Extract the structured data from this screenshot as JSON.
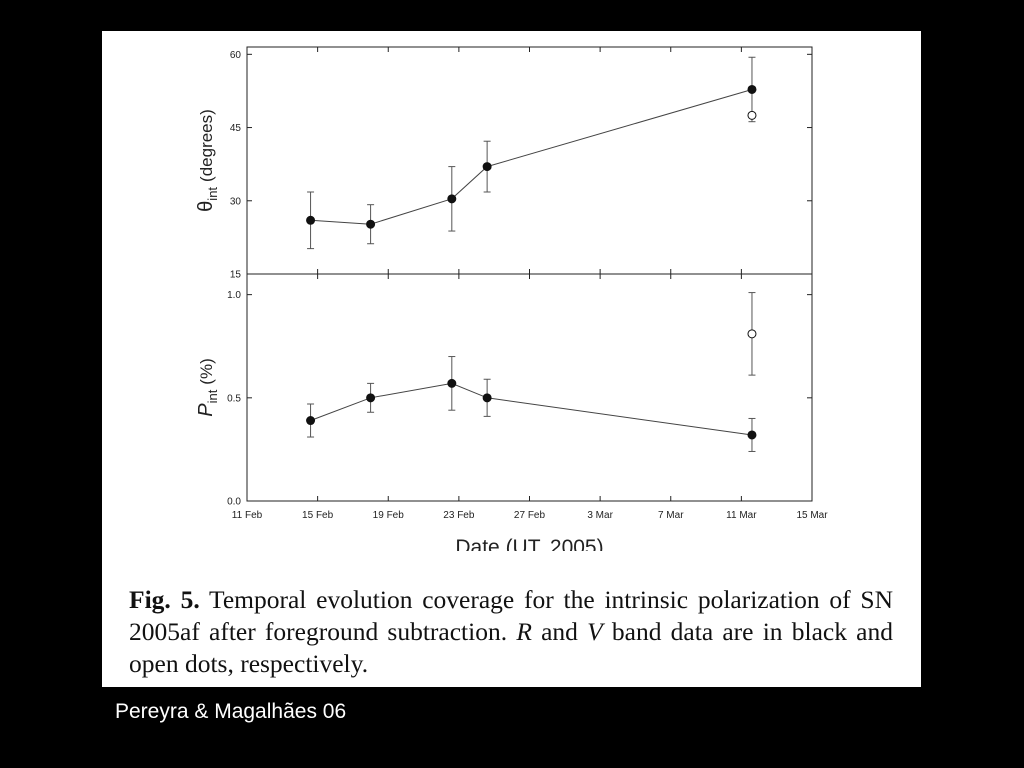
{
  "caption": {
    "lead": "Fig. 5.",
    "text_1": " Temporal evolution coverage for the intrinsic polarization of SN 2005af after foreground subtraction. ",
    "band_r": "R",
    "text_2": " and ",
    "band_v": "V",
    "text_3": " band data are in black and open dots, respectively."
  },
  "credit": "Pereyra & Magalhães 06",
  "chart_data": [
    {
      "type": "scatter",
      "panel": "top",
      "ylabel": {
        "symbol": "θ",
        "subscript": "int",
        "unit": "(degrees)"
      },
      "xlabel": "",
      "xlim": [
        "2005-02-11",
        "2005-03-15"
      ],
      "ylim": [
        15,
        61.5
      ],
      "yticks": [
        15,
        30,
        45,
        60
      ],
      "ytick_labels": [
        "15",
        "30",
        "45",
        "60"
      ],
      "x_tick_marks": [
        "2005-02-11",
        "2005-02-15",
        "2005-02-19",
        "2005-02-23",
        "2005-02-27",
        "2005-03-03",
        "2005-03-07",
        "2005-03-11",
        "2005-03-15"
      ],
      "grid": false,
      "series": [
        {
          "marker": "filled",
          "connected": true,
          "color": "#111111",
          "points": [
            {
              "x": "2005-02-14.6",
              "y": 26.0,
              "err": 5.8
            },
            {
              "x": "2005-02-18.0",
              "y": 25.2,
              "err": 4.0
            },
            {
              "x": "2005-02-22.6",
              "y": 30.4,
              "err": 6.6
            },
            {
              "x": "2005-02-24.6",
              "y": 37.0,
              "err": 5.2
            },
            {
              "x": "2005-03-11.6",
              "y": 52.8,
              "err": 6.6
            }
          ]
        },
        {
          "marker": "open",
          "connected": false,
          "color": "#111111",
          "points": [
            {
              "x": "2005-03-11.6",
              "y": 47.5,
              "err": 0.0
            }
          ]
        }
      ]
    },
    {
      "type": "scatter",
      "panel": "bottom",
      "ylabel": {
        "symbol": "P",
        "subscript": "int",
        "unit": "(%)"
      },
      "xlabel": "Date (UT, 2005)",
      "xlim": [
        "2005-02-11",
        "2005-03-15"
      ],
      "ylim": [
        0.0,
        1.1
      ],
      "yticks": [
        0.0,
        0.5,
        1.0
      ],
      "ytick_labels": [
        "0.0",
        "0.5",
        "1.0"
      ],
      "xticks": [
        "2005-02-11",
        "2005-02-15",
        "2005-02-19",
        "2005-02-23",
        "2005-02-27",
        "2005-03-03",
        "2005-03-07",
        "2005-03-11",
        "2005-03-15"
      ],
      "xtick_labels": [
        "11 Feb",
        "15 Feb",
        "19 Feb",
        "23 Feb",
        "27 Feb",
        "3 Mar",
        "7 Mar",
        "11 Mar",
        "15 Mar"
      ],
      "grid": false,
      "series": [
        {
          "marker": "filled",
          "connected": true,
          "color": "#111111",
          "points": [
            {
              "x": "2005-02-14.6",
              "y": 0.39,
              "err": 0.08
            },
            {
              "x": "2005-02-18.0",
              "y": 0.5,
              "err": 0.07
            },
            {
              "x": "2005-02-22.6",
              "y": 0.57,
              "err": 0.13
            },
            {
              "x": "2005-02-24.6",
              "y": 0.5,
              "err": 0.09
            },
            {
              "x": "2005-03-11.6",
              "y": 0.32,
              "err": 0.08
            }
          ]
        },
        {
          "marker": "open",
          "connected": false,
          "color": "#111111",
          "points": [
            {
              "x": "2005-03-11.6",
              "y": 0.81,
              "err": 0.2
            }
          ]
        }
      ]
    }
  ]
}
